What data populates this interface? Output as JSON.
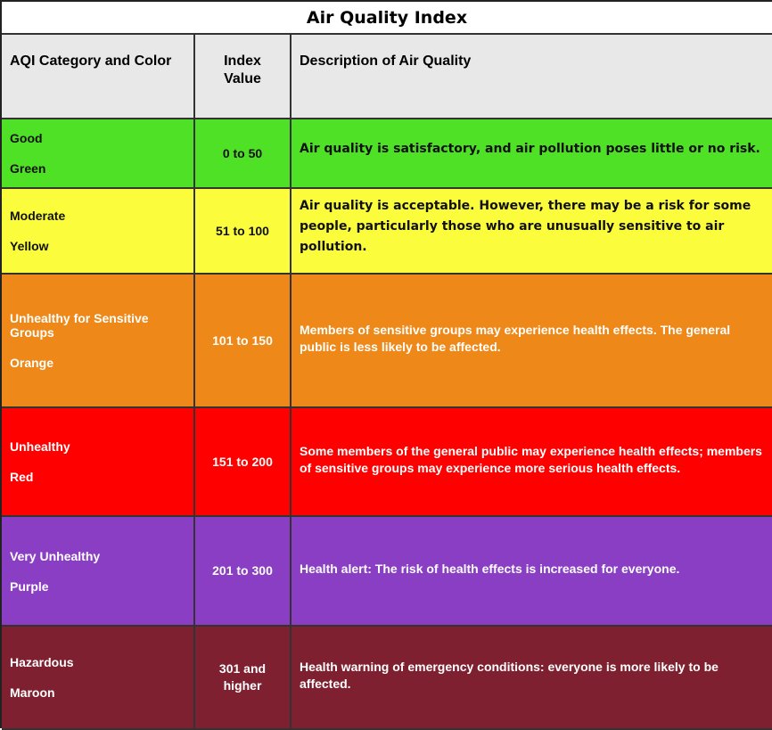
{
  "header": {
    "title": "Air Quality Index"
  },
  "table": {
    "columns": [
      "AQI Category and Color",
      "Index Value",
      "Description of Air Quality"
    ],
    "rows": [
      {
        "category": "Good",
        "color": "Green",
        "index": "0 to 50",
        "description": "Air quality is satisfactory, and air pollution poses little or no risk."
      },
      {
        "category": "Moderate",
        "color": "Yellow",
        "index": "51 to 100",
        "description": "Air quality is acceptable. However, there may be a risk for some people, particularly those who are unusually sensitive to air pollution."
      },
      {
        "category": "Unhealthy for Sensitive Groups",
        "color": "Orange",
        "index": "101 to 150",
        "description": "Members of sensitive groups may experience health effects. The general public is less likely to be affected."
      },
      {
        "category": "Unhealthy",
        "color": "Red",
        "index": "151 to 200",
        "description": "Some members of the general public may experience health effects; members of sensitive groups may experience more serious health effects."
      },
      {
        "category": "Very Unhealthy",
        "color": "Purple",
        "index": "201 to 300",
        "description": "Health alert: The risk of health effects is increased for everyone."
      },
      {
        "category": "Hazardous",
        "color": "Maroon",
        "index": "301 and higher",
        "description": "Health warning of emergency conditions: everyone is more likely to be affected."
      }
    ]
  }
}
